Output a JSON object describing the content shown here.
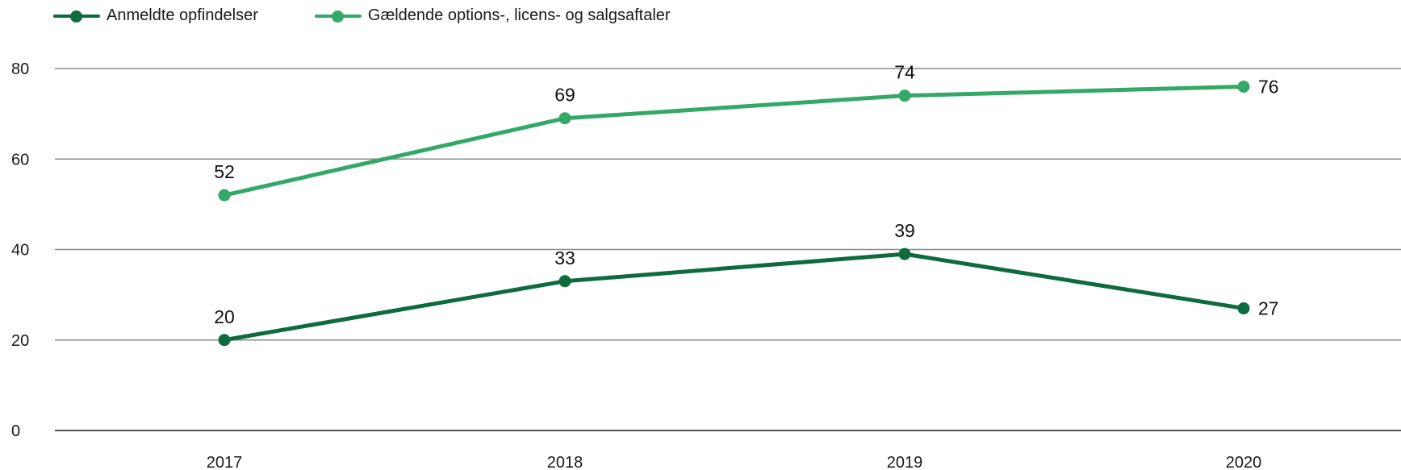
{
  "chart_data": {
    "type": "line",
    "title": "",
    "xlabel": "",
    "ylabel": "",
    "categories": [
      "2017",
      "2018",
      "2019",
      "2020"
    ],
    "ylim": [
      0,
      80
    ],
    "yticks": [
      0,
      20,
      40,
      60,
      80
    ],
    "grid": true,
    "legend_position": "top-left",
    "series": [
      {
        "name": "Anmeldte opfindelser",
        "color": "#0e6b3e",
        "values": [
          20,
          33,
          39,
          27
        ]
      },
      {
        "name": "Gældende options-, licens- og salgsaftaler",
        "color": "#33a867",
        "values": [
          52,
          69,
          74,
          76
        ]
      }
    ]
  }
}
